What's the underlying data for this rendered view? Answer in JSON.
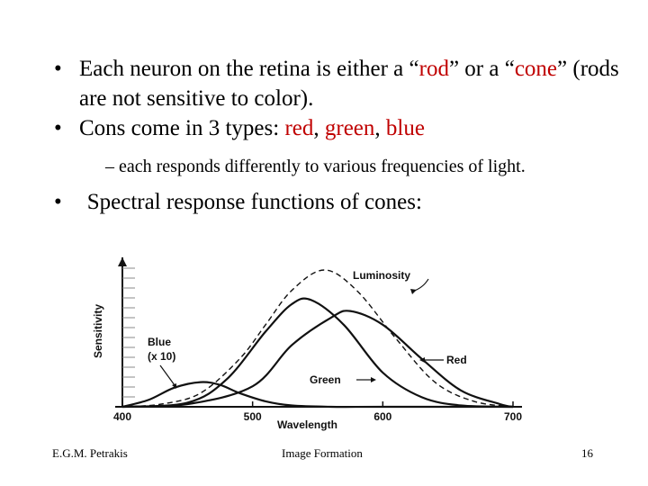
{
  "bullets": {
    "b1_pre": "Each neuron on the retina is either a “",
    "b1_rod": "rod",
    "b1_mid": "” or a “",
    "b1_cone": "cone",
    "b1_post": "” (rods are not sensitive to color).",
    "b2_pre": "Cons come in 3 types: ",
    "b2_red": "red",
    "b2_sep1": ", ",
    "b2_green": "green",
    "b2_sep2": ", ",
    "b2_blue": "blue",
    "sub": "– each responds differently to various frequencies of light.",
    "b3": "Spectral response functions of cones:",
    "bullet_glyph": "•"
  },
  "chart_data": {
    "type": "line",
    "xlabel": "Wavelength",
    "ylabel": "Sensitivity",
    "xlim": [
      400,
      700
    ],
    "ylim": [
      0,
      1
    ],
    "x_ticks": [
      "400",
      "500",
      "600",
      "700"
    ],
    "series": [
      {
        "name": "Luminosity",
        "x": [
          400,
          430,
          460,
          490,
          510,
          530,
          555,
          580,
          610,
          640,
          670,
          700
        ],
        "y": [
          0.0,
          0.02,
          0.1,
          0.35,
          0.6,
          0.85,
          1.0,
          0.85,
          0.5,
          0.18,
          0.04,
          0.0
        ]
      },
      {
        "name": "Red",
        "x": [
          400,
          450,
          500,
          530,
          560,
          575,
          600,
          630,
          660,
          690,
          700
        ],
        "y": [
          0.0,
          0.02,
          0.15,
          0.45,
          0.65,
          0.7,
          0.6,
          0.35,
          0.12,
          0.02,
          0.0
        ]
      },
      {
        "name": "Green",
        "x": [
          400,
          450,
          480,
          510,
          530,
          545,
          570,
          600,
          630,
          660,
          700
        ],
        "y": [
          0.0,
          0.03,
          0.2,
          0.55,
          0.75,
          0.78,
          0.6,
          0.25,
          0.07,
          0.01,
          0.0
        ]
      },
      {
        "name": "Blue\n(x 10)",
        "x": [
          400,
          420,
          440,
          460,
          475,
          490,
          510,
          530,
          560,
          600,
          700
        ],
        "y": [
          0.0,
          0.05,
          0.14,
          0.18,
          0.16,
          0.1,
          0.04,
          0.01,
          0.0,
          0.0,
          0.0
        ]
      }
    ],
    "labels": {
      "luminosity": "Luminosity",
      "red": "Red",
      "green": "Green",
      "blue_line1": "Blue",
      "blue_line2": "(x 10)"
    }
  },
  "footer": {
    "author": "E.G.M. Petrakis",
    "title": "Image Formation",
    "page": "16"
  }
}
